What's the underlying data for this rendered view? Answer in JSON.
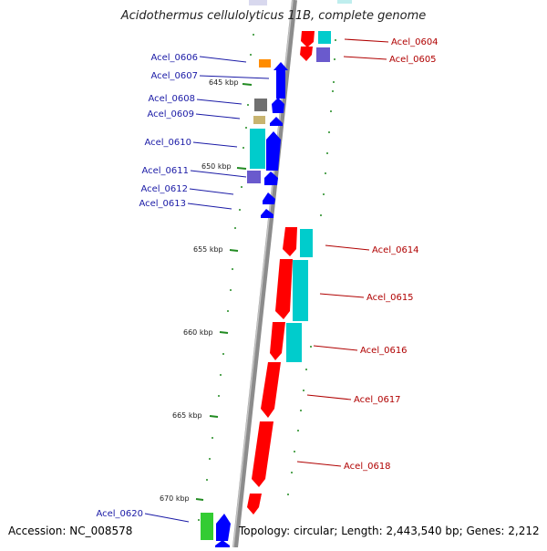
{
  "title": "Acidothermus cellulolyticus 11B, complete genome",
  "footer": {
    "accession": "Accession: NC_008578",
    "summary": "Topology: circular; Length: 2,443,540 bp; Genes: 2,212"
  },
  "scale_labels": [
    "645 kbp",
    "650 kbp",
    "655 kbp",
    "660 kbp",
    "665 kbp",
    "670 kbp"
  ],
  "colors": {
    "backbone": "#8c8c8c",
    "forward_cds": "#0000ff",
    "reverse_cds": "#ff0000",
    "cyan_feature": "#00cccc",
    "slate_feature": "#6a5acd",
    "orange_feature": "#ff8c00",
    "olive_feature": "#c8b470",
    "gray_feature": "#707070",
    "green_feature": "#33cc33",
    "left_label": "#1a1aa6",
    "right_label": "#b00000",
    "scale_tick": "#228b22"
  },
  "left_labels": [
    "Acel_0606",
    "Acel_0607",
    "Acel_0608",
    "Acel_0609",
    "Acel_0610",
    "Acel_0611",
    "Acel_0612",
    "Acel_0613",
    "Acel_0620"
  ],
  "right_labels": [
    "Acel_0604",
    "Acel_0605",
    "Acel_0614",
    "Acel_0615",
    "Acel_0616",
    "Acel_0617",
    "Acel_0618"
  ]
}
